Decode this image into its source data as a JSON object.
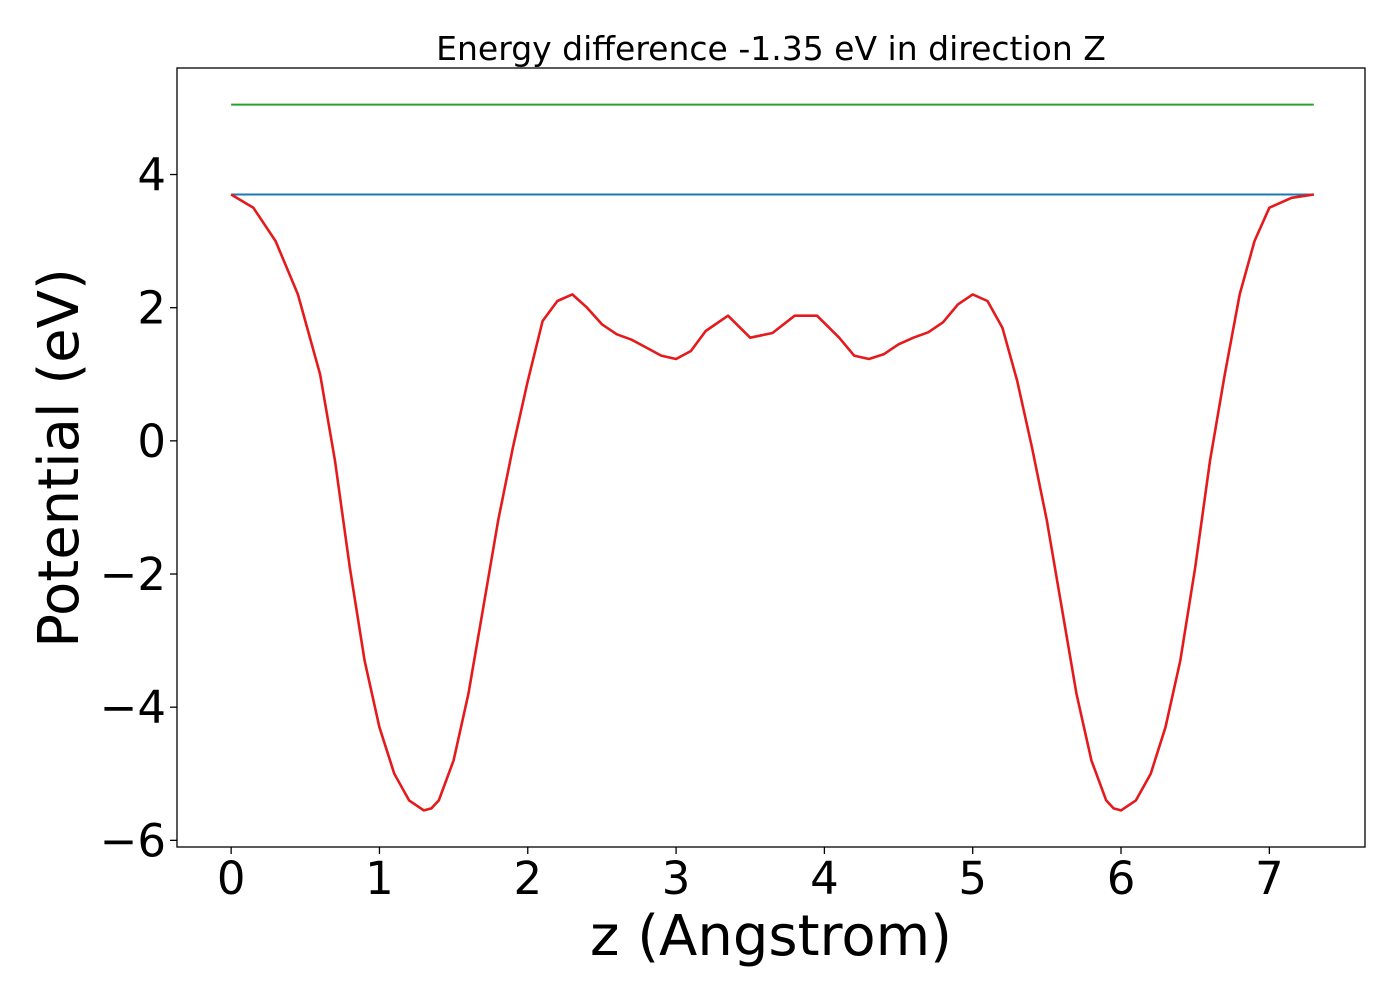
{
  "chart_data": {
    "type": "line",
    "title": "Energy difference -1.35 eV in direction Z",
    "xlabel": "z (Angstrom)",
    "ylabel": "Potential (eV)",
    "xlim": [
      -0.365,
      7.645
    ],
    "ylim": [
      -6.1,
      5.6
    ],
    "xticks": [
      0,
      1,
      2,
      3,
      4,
      5,
      6,
      7
    ],
    "xtick_labels": [
      "0",
      "1",
      "2",
      "3",
      "4",
      "5",
      "6",
      "7"
    ],
    "yticks": [
      -6,
      -4,
      -2,
      0,
      2,
      4
    ],
    "ytick_labels": [
      "−6",
      "−4",
      "−2",
      "0",
      "2",
      "4"
    ],
    "grid": false,
    "series": [
      {
        "color": "#2ca02c",
        "x": [
          0,
          7.3
        ],
        "y": [
          5.05,
          5.05
        ]
      },
      {
        "color": "#1f77b4",
        "x": [
          0,
          7.3
        ],
        "y": [
          3.7,
          3.7
        ]
      },
      {
        "color": "#e41a1c",
        "x": [
          0,
          0.15,
          0.3,
          0.45,
          0.6,
          0.7,
          0.8,
          0.9,
          1.0,
          1.1,
          1.2,
          1.3,
          1.35,
          1.4,
          1.5,
          1.6,
          1.7,
          1.8,
          1.9,
          2.0,
          2.1,
          2.2,
          2.3,
          2.4,
          2.5,
          2.6,
          2.7,
          2.8,
          2.9,
          3.0,
          3.1,
          3.2,
          3.35,
          3.5,
          3.65,
          3.8,
          3.95,
          4.1,
          4.2,
          4.3,
          4.4,
          4.5,
          4.6,
          4.7,
          4.8,
          4.9,
          5.0,
          5.1,
          5.2,
          5.3,
          5.4,
          5.5,
          5.6,
          5.7,
          5.8,
          5.9,
          5.95,
          6.0,
          6.1,
          6.2,
          6.3,
          6.4,
          6.5,
          6.6,
          6.7,
          6.8,
          6.9,
          7.0,
          7.15,
          7.3
        ],
        "y": [
          3.7,
          3.5,
          3.0,
          2.2,
          1.0,
          -0.3,
          -1.9,
          -3.3,
          -4.3,
          -5.0,
          -5.4,
          -5.55,
          -5.52,
          -5.4,
          -4.8,
          -3.8,
          -2.5,
          -1.2,
          -0.1,
          0.9,
          1.8,
          2.1,
          2.2,
          2.0,
          1.75,
          1.6,
          1.52,
          1.4,
          1.28,
          1.23,
          1.35,
          1.65,
          1.88,
          1.55,
          1.62,
          1.88,
          1.88,
          1.55,
          1.28,
          1.23,
          1.3,
          1.45,
          1.55,
          1.63,
          1.78,
          2.05,
          2.2,
          2.1,
          1.7,
          0.9,
          -0.1,
          -1.2,
          -2.5,
          -3.8,
          -4.8,
          -5.4,
          -5.52,
          -5.55,
          -5.4,
          -5.0,
          -4.3,
          -3.3,
          -1.9,
          -0.3,
          1.0,
          2.2,
          3.0,
          3.5,
          3.65,
          3.7
        ]
      }
    ]
  }
}
